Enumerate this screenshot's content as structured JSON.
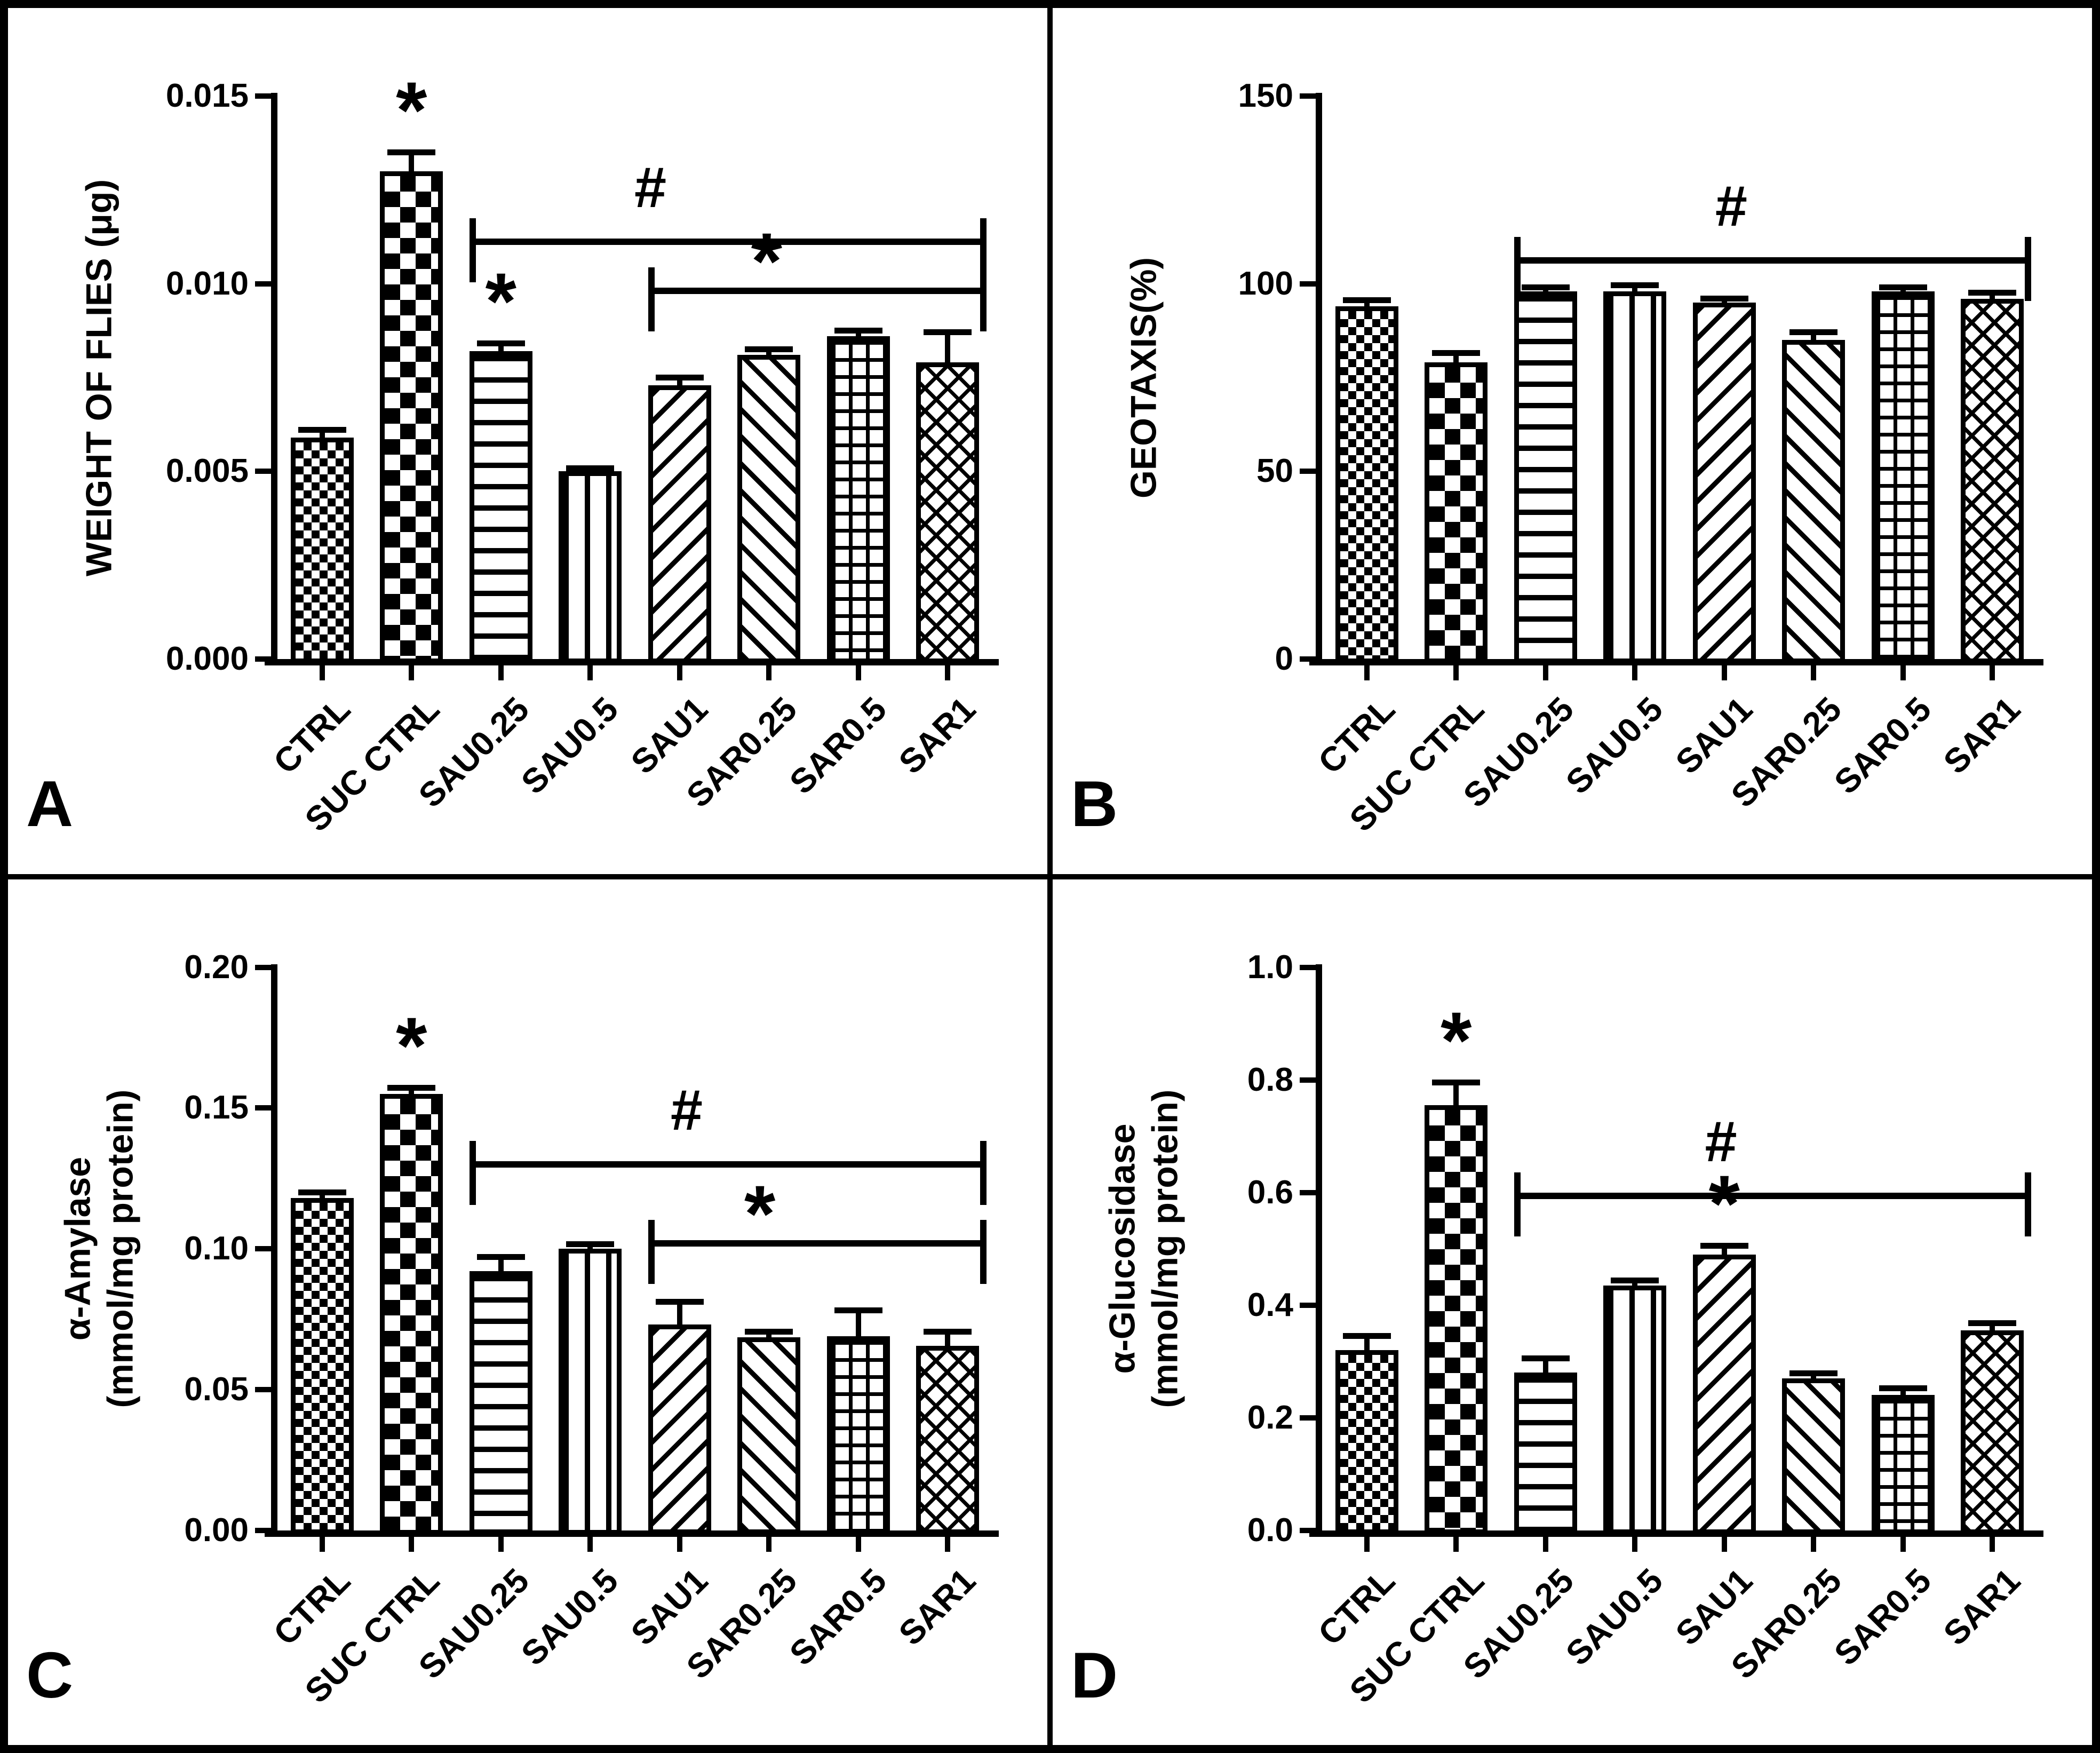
{
  "colors": {
    "ink": "#000000",
    "paper": "#ffffff"
  },
  "chart_data": [
    {
      "id": "A",
      "type": "bar",
      "panel_label": "A",
      "ylabel_lines": [
        "WEIGHT OF FLIES (μg)"
      ],
      "ylim": [
        0,
        0.015
      ],
      "yticks": [
        {
          "value": 0,
          "label": "0.000"
        },
        {
          "value": 0.005,
          "label": "0.005"
        },
        {
          "value": 0.01,
          "label": "0.010"
        },
        {
          "value": 0.015,
          "label": "0.015"
        }
      ],
      "categories": [
        "CTRL",
        "SUC CTRL",
        "SAU0.25",
        "SAU0.5",
        "SAU1",
        "SAR0.25",
        "SAR0.5",
        "SAR1"
      ],
      "values": [
        0.0059,
        0.013,
        0.0082,
        0.005,
        0.0073,
        0.0081,
        0.0086,
        0.0079
      ],
      "errors": [
        0.0002,
        0.0005,
        0.0002,
        8e-05,
        0.0002,
        0.00015,
        0.00015,
        0.0008
      ],
      "bar_patterns": [
        "fine-check",
        "checkerboard",
        "h-lines",
        "v-lines",
        "diag-up",
        "diag-down",
        "grid",
        "diamond"
      ],
      "stars": [
        {
          "bar_index": 1,
          "symbol": "*"
        },
        {
          "bar_index": 2,
          "symbol": "*"
        }
      ],
      "brackets": [
        {
          "symbol": "#",
          "from_index": 2,
          "to_index": 7,
          "y_value": 0.0112,
          "symbol_frac": 0.35
        },
        {
          "symbol": "*",
          "from_index": 4,
          "to_index": 7,
          "y_value": 0.0099,
          "symbol_frac": 0.35
        }
      ],
      "grid": false,
      "legend": "none"
    },
    {
      "id": "B",
      "type": "bar",
      "panel_label": "B",
      "ylabel_lines": [
        "GEOTAXIS(%)"
      ],
      "ylim": [
        0,
        150
      ],
      "yticks": [
        {
          "value": 0,
          "label": "0"
        },
        {
          "value": 50,
          "label": "50"
        },
        {
          "value": 100,
          "label": "100"
        },
        {
          "value": 150,
          "label": "150"
        }
      ],
      "categories": [
        "CTRL",
        "SUC CTRL",
        "SAU0.25",
        "SAU0.5",
        "SAU1",
        "SAR0.25",
        "SAR0.5",
        "SAR1"
      ],
      "values": [
        94,
        79,
        98,
        98,
        95,
        85,
        98,
        96
      ],
      "errors": [
        1.5,
        2.5,
        1,
        1.5,
        1,
        2,
        1,
        1.5
      ],
      "bar_patterns": [
        "fine-check",
        "checkerboard",
        "h-lines",
        "v-lines",
        "diag-up",
        "diag-down",
        "grid",
        "diamond"
      ],
      "stars": [],
      "brackets": [
        {
          "symbol": "#",
          "from_index": 2,
          "to_index": 7,
          "y_value": 107,
          "symbol_frac": 0.42
        }
      ],
      "grid": false,
      "legend": "none"
    },
    {
      "id": "C",
      "type": "bar",
      "panel_label": "C",
      "ylabel_lines": [
        "α-Amylase",
        "(mmol/mg protein)"
      ],
      "ylim": [
        0,
        0.2
      ],
      "yticks": [
        {
          "value": 0,
          "label": "0.00"
        },
        {
          "value": 0.05,
          "label": "0.05"
        },
        {
          "value": 0.1,
          "label": "0.10"
        },
        {
          "value": 0.15,
          "label": "0.15"
        },
        {
          "value": 0.2,
          "label": "0.20"
        }
      ],
      "categories": [
        "CTRL",
        "SUC CTRL",
        "SAU0.25",
        "SAU0.5",
        "SAU1",
        "SAR0.25",
        "SAR0.5",
        "SAR1"
      ],
      "values": [
        0.118,
        0.155,
        0.092,
        0.1,
        0.073,
        0.0685,
        0.069,
        0.0655
      ],
      "errors": [
        0.002,
        0.002,
        0.005,
        0.0015,
        0.008,
        0.002,
        0.009,
        0.005
      ],
      "bar_patterns": [
        "fine-check",
        "checkerboard",
        "h-lines",
        "v-lines",
        "diag-up",
        "diag-down",
        "grid",
        "diamond"
      ],
      "stars": [
        {
          "bar_index": 1,
          "symbol": "*"
        }
      ],
      "brackets": [
        {
          "symbol": "#",
          "from_index": 2,
          "to_index": 7,
          "y_value": 0.131,
          "symbol_frac": 0.42
        },
        {
          "symbol": "*",
          "from_index": 4,
          "to_index": 7,
          "y_value": 0.103,
          "symbol_frac": 0.33
        }
      ],
      "grid": false,
      "legend": "none"
    },
    {
      "id": "D",
      "type": "bar",
      "panel_label": "D",
      "ylabel_lines": [
        "α-Glucosidase",
        "(mmol/mg protein)"
      ],
      "ylim": [
        0,
        1.0
      ],
      "yticks": [
        {
          "value": 0,
          "label": "0.0"
        },
        {
          "value": 0.2,
          "label": "0.2"
        },
        {
          "value": 0.4,
          "label": "0.4"
        },
        {
          "value": 0.6,
          "label": "0.6"
        },
        {
          "value": 0.8,
          "label": "0.8"
        },
        {
          "value": 1.0,
          "label": "1.0"
        }
      ],
      "categories": [
        "CTRL",
        "SUC CTRL",
        "SAU0.25",
        "SAU0.5",
        "SAU1",
        "SAR0.25",
        "SAR0.5",
        "SAR1"
      ],
      "values": [
        0.32,
        0.755,
        0.28,
        0.435,
        0.49,
        0.27,
        0.24,
        0.355
      ],
      "errors": [
        0.025,
        0.04,
        0.025,
        0.008,
        0.015,
        0.008,
        0.012,
        0.012
      ],
      "bar_patterns": [
        "fine-check",
        "checkerboard",
        "h-lines",
        "v-lines",
        "diag-up",
        "diag-down",
        "grid",
        "diamond"
      ],
      "stars": [
        {
          "bar_index": 1,
          "symbol": "*"
        },
        {
          "bar_index": 4,
          "symbol": "*"
        }
      ],
      "brackets": [
        {
          "symbol": "#",
          "from_index": 2,
          "to_index": 7,
          "y_value": 0.6,
          "symbol_frac": 0.4
        }
      ],
      "grid": false,
      "legend": "none"
    }
  ]
}
